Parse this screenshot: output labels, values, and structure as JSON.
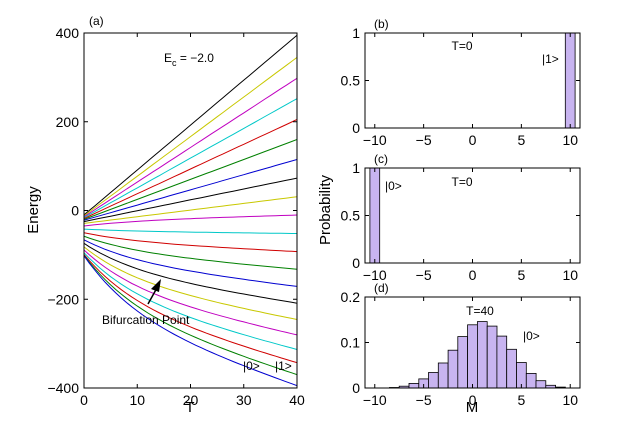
{
  "figure": {
    "ylabel_right": "Probability"
  },
  "chart_data": [
    {
      "type": "line",
      "panel": "(a)",
      "xlabel": "T",
      "ylabel": "Energy",
      "xlim": [
        0,
        40
      ],
      "ylim": [
        -400,
        400
      ],
      "xticks": [
        0,
        10,
        20,
        30,
        40
      ],
      "yticks": [
        -400,
        -200,
        0,
        200,
        400
      ],
      "annotations": {
        "ec": "E",
        "ec_sub": "c",
        "ec_value": " = −2.0",
        "bifurcation": "Bifurcation Point",
        "state0": "|0>",
        "state1": "|1>"
      },
      "colors": [
        "#000000",
        "#c8c800",
        "#c000c0",
        "#00c8c8",
        "#d00000",
        "#008000",
        "#0000d0"
      ],
      "series": [
        {
          "x": [
            0,
            40
          ],
          "y": [
            -10,
            395
          ]
        },
        {
          "x": [
            0,
            40
          ],
          "y": [
            -12,
            345
          ]
        },
        {
          "x": [
            0,
            40
          ],
          "y": [
            -14,
            298
          ]
        },
        {
          "x": [
            0,
            40
          ],
          "y": [
            -16,
            252
          ]
        },
        {
          "x": [
            0,
            40
          ],
          "y": [
            -18,
            205
          ]
        },
        {
          "x": [
            0,
            40
          ],
          "y": [
            -20,
            160
          ]
        },
        {
          "x": [
            0,
            40
          ],
          "y": [
            -22,
            115
          ]
        },
        {
          "x": [
            0,
            40
          ],
          "y": [
            -25,
            73
          ]
        },
        {
          "x": [
            0,
            40
          ],
          "y": [
            -29,
            31
          ]
        },
        {
          "x": [
            0,
            40
          ],
          "y": [
            -35,
            -10
          ]
        },
        {
          "x": [
            0,
            40
          ],
          "y": [
            -42,
            -52
          ]
        },
        {
          "x": [
            0,
            40
          ],
          "y": [
            -50,
            -93
          ]
        },
        {
          "x": [
            0,
            40
          ],
          "y": [
            -58,
            -133
          ]
        },
        {
          "x": [
            0,
            40
          ],
          "y": [
            -66,
            -172
          ]
        },
        {
          "x": [
            0,
            40
          ],
          "y": [
            -74,
            -210
          ]
        },
        {
          "x": [
            0,
            40
          ],
          "y": [
            -82,
            -247
          ]
        },
        {
          "x": [
            0,
            40
          ],
          "y": [
            -89,
            -282
          ]
        },
        {
          "x": [
            0,
            40
          ],
          "y": [
            -95,
            -315
          ]
        },
        {
          "x": [
            0,
            40
          ],
          "y": [
            -99,
            -345
          ]
        },
        {
          "x": [
            0,
            40
          ],
          "y": [
            -101,
            -372
          ]
        },
        {
          "x": [
            0,
            40
          ],
          "y": [
            -102,
            -397
          ]
        }
      ]
    },
    {
      "type": "bar",
      "panel": "(b)",
      "title": "T=0",
      "state_label": "|1>",
      "xlim": [
        -11,
        11
      ],
      "ylim": [
        0,
        1
      ],
      "xticks": [
        -10,
        -5,
        0,
        5,
        10
      ],
      "yticks": [
        0,
        0.5,
        1
      ],
      "ytick_labels": [
        "0",
        "0.5",
        "1"
      ],
      "x": [
        10
      ],
      "values": [
        1.0
      ]
    },
    {
      "type": "bar",
      "panel": "(c)",
      "title": "T=0",
      "state_label": "|0>",
      "xlim": [
        -11,
        11
      ],
      "ylim": [
        0,
        1
      ],
      "xticks": [
        -10,
        -5,
        0,
        5,
        10
      ],
      "yticks": [
        0,
        0.5,
        1
      ],
      "ytick_labels": [
        "0",
        "0.5",
        "1"
      ],
      "x": [
        -10
      ],
      "values": [
        1.0
      ]
    },
    {
      "type": "bar",
      "panel": "(d)",
      "title": "T=40",
      "state_label": "|0>",
      "xlabel": "M",
      "xlim": [
        -11,
        11
      ],
      "ylim": [
        0,
        0.2
      ],
      "xticks": [
        -10,
        -5,
        0,
        5,
        10
      ],
      "yticks": [
        0,
        0.1,
        0.2
      ],
      "ytick_labels": [
        "0",
        "0.1",
        "0.2"
      ],
      "x": [
        -10,
        -9,
        -8,
        -7,
        -6,
        -5,
        -4,
        -3,
        -2,
        -1,
        0,
        1,
        2,
        3,
        4,
        5,
        6,
        7,
        8,
        9,
        10
      ],
      "values": [
        0,
        0,
        0.001,
        0.004,
        0.01,
        0.02,
        0.034,
        0.055,
        0.083,
        0.113,
        0.139,
        0.146,
        0.136,
        0.114,
        0.085,
        0.056,
        0.032,
        0.016,
        0.006,
        0.002,
        0
      ]
    }
  ]
}
